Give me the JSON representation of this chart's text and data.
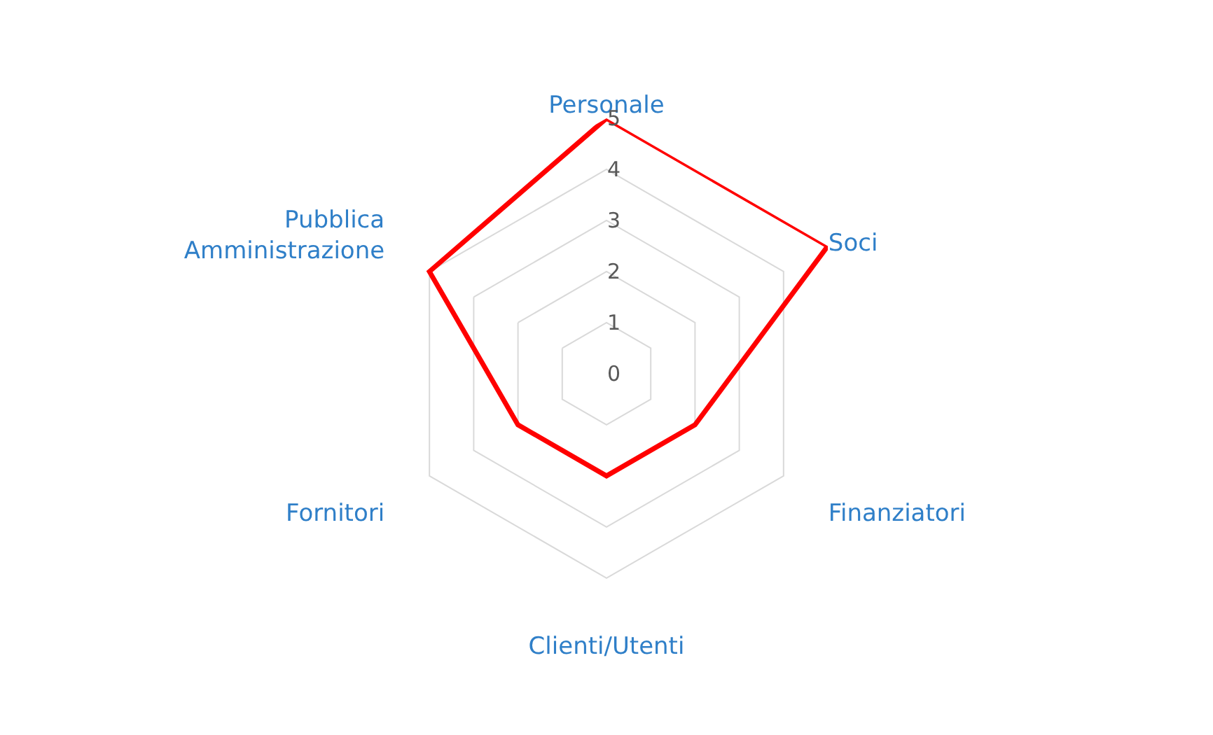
{
  "chart_data": {
    "type": "radar",
    "categories": [
      "Personale",
      "Soci",
      "Finanziatori",
      "Clienti/Utenti",
      "Fornitori",
      "Pubblica Amministrazione"
    ],
    "series": [
      {
        "color": "#ff0000",
        "values": [
          5,
          5,
          2,
          2,
          2,
          4
        ]
      }
    ],
    "ylim": [
      0,
      5
    ],
    "yticks": [
      0,
      1,
      2,
      3,
      4,
      5
    ],
    "grid": true,
    "marker": "none",
    "line_style": "solid"
  }
}
